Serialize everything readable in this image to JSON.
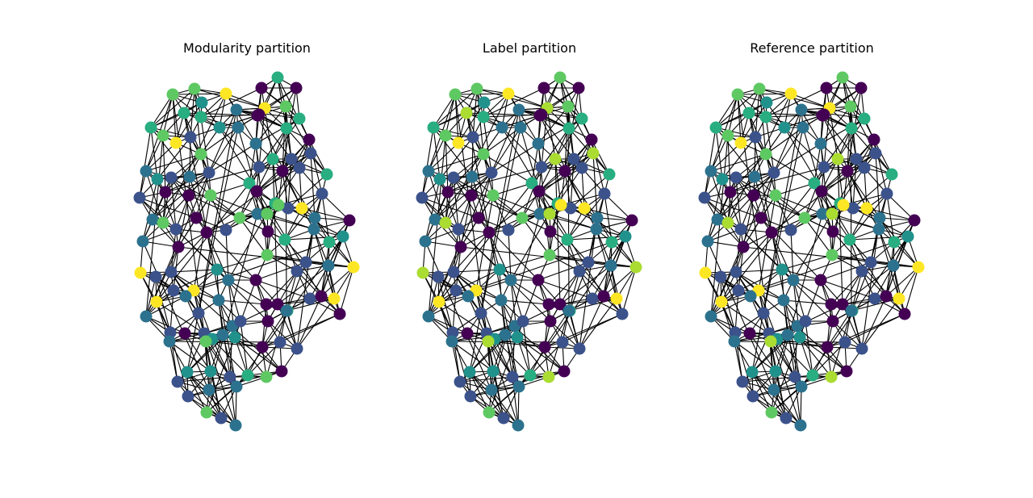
{
  "figure": {
    "panels": [
      {
        "title": "Modularity partition",
        "scheme": "modularity"
      },
      {
        "title": "Label partition",
        "scheme": "label"
      },
      {
        "title": "Reference partition",
        "scheme": "reference"
      }
    ],
    "palette": [
      "#440154",
      "#3b528b",
      "#2c728e",
      "#21918c",
      "#28ae80",
      "#5ec962",
      "#aadc32",
      "#fde725"
    ]
  }
}
